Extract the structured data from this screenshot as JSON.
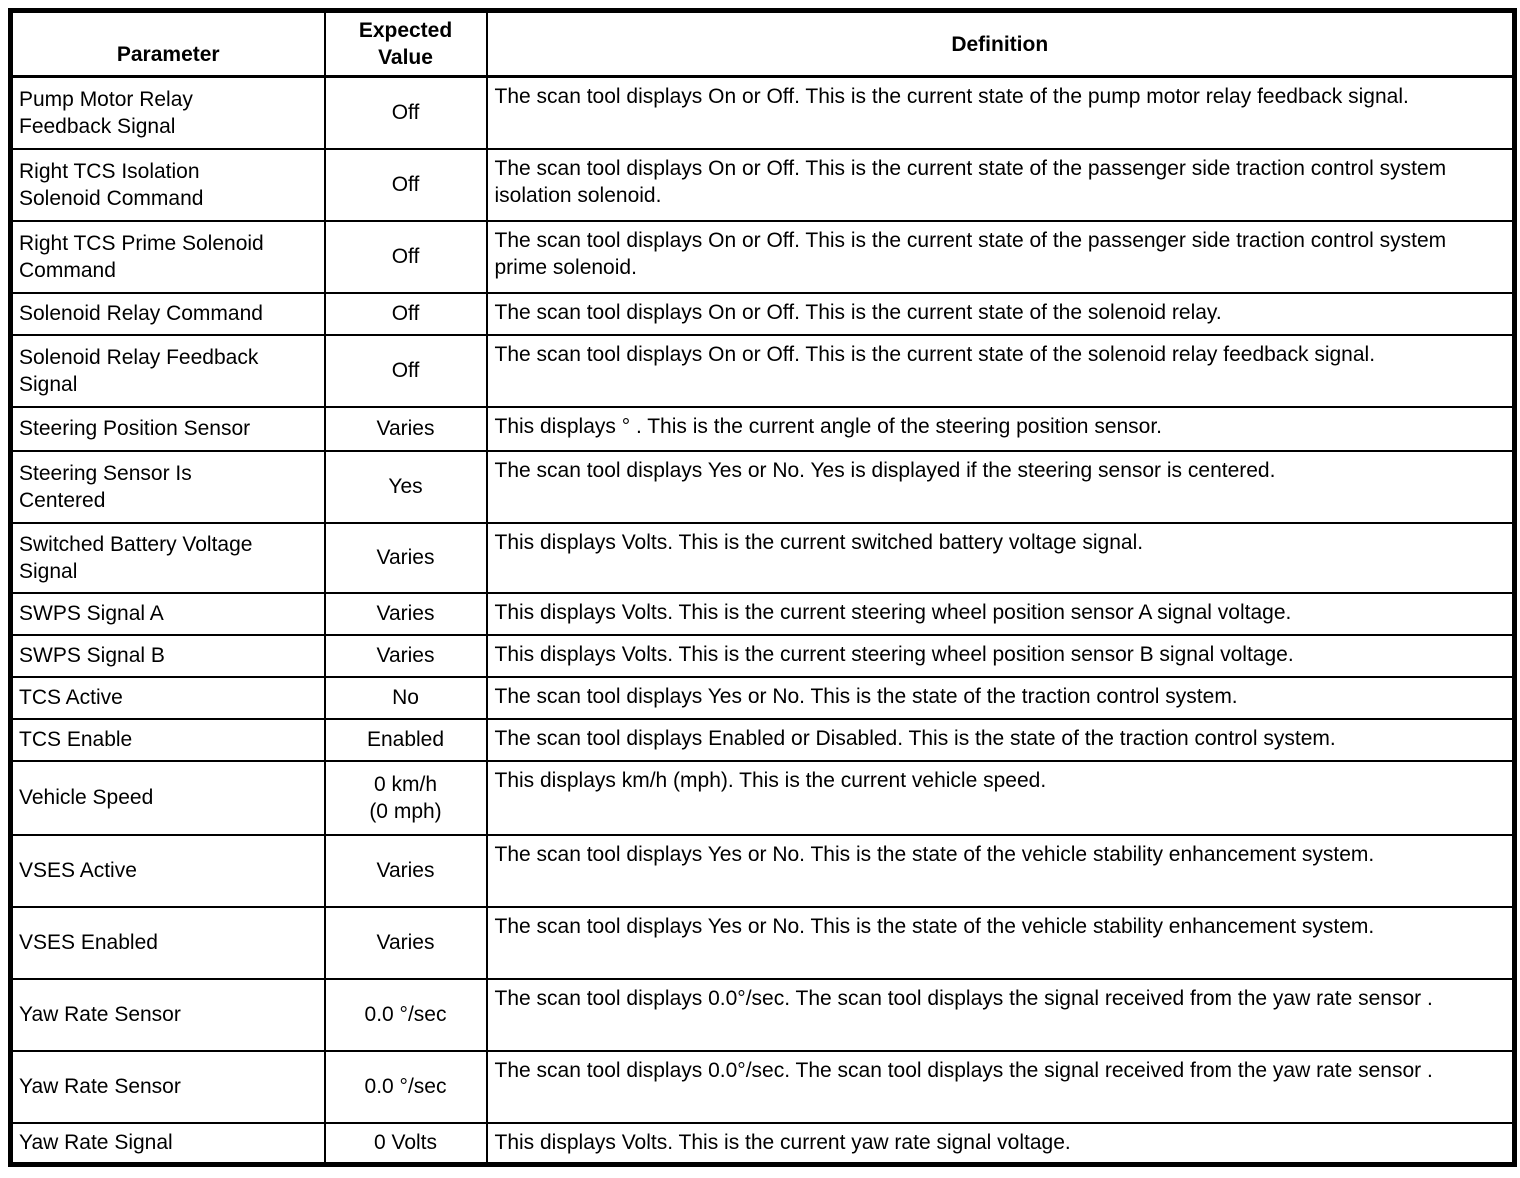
{
  "colors": {
    "background": "#ffffff",
    "border": "#000000",
    "text": "#000000"
  },
  "table": {
    "header": {
      "parameter": "Parameter",
      "expected": "Expected\nValue",
      "definition": "Definition"
    },
    "rows": [
      {
        "parameter": "Pump Motor Relay\nFeedback Signal",
        "expected": "Off",
        "definition": "The scan tool displays On or Off. This is the current state of the pump motor relay feedback signal."
      },
      {
        "parameter": "Right TCS Isolation\nSolenoid Command",
        "expected": "Off",
        "definition": "The scan tool displays On or Off. This is the current state of the passenger side traction control system isolation solenoid."
      },
      {
        "parameter": "Right TCS Prime Solenoid\nCommand",
        "expected": "Off",
        "definition": "The scan tool displays On or Off. This is the current state of the passenger side traction control system prime solenoid."
      },
      {
        "parameter": "Solenoid Relay Command",
        "expected": "Off",
        "definition": "The scan tool displays On or Off. This is the current state of the solenoid relay."
      },
      {
        "parameter": "Solenoid Relay Feedback\nSignal",
        "expected": "Off",
        "definition": "The scan tool displays On or Off. This is the current state of the solenoid relay feedback signal."
      },
      {
        "parameter": "Steering Position Sensor",
        "expected": "Varies",
        "definition": "This displays ° . This is the current angle of the steering position sensor."
      },
      {
        "parameter": "Steering Sensor Is\nCentered",
        "expected": "Yes",
        "definition": "The scan tool displays Yes or No. Yes is displayed if the steering sensor is centered."
      },
      {
        "parameter": "Switched Battery Voltage\nSignal",
        "expected": "Varies",
        "definition": "This displays Volts. This is the current switched battery voltage signal."
      },
      {
        "parameter": "SWPS Signal A",
        "expected": "Varies",
        "definition": "This displays Volts. This is the current steering wheel position sensor A signal voltage."
      },
      {
        "parameter": "SWPS Signal B",
        "expected": "Varies",
        "definition": "This displays Volts. This is the current steering wheel position sensor B signal voltage."
      },
      {
        "parameter": "TCS Active",
        "expected": "No",
        "definition": "The scan tool displays Yes or No. This is the state of the traction control system."
      },
      {
        "parameter": "TCS Enable",
        "expected": "Enabled",
        "definition": "The scan tool displays Enabled or Disabled. This is the state of the traction control system."
      },
      {
        "parameter": "Vehicle Speed",
        "expected": "0 km/h\n(0 mph)",
        "definition": "This displays km/h (mph). This is the current vehicle speed."
      },
      {
        "parameter": "VSES Active",
        "expected": "Varies",
        "definition": "The scan tool displays Yes or No. This is the state of the vehicle stability enhancement system."
      },
      {
        "parameter": "VSES Enabled",
        "expected": "Varies",
        "definition": "The scan tool displays Yes or No. This is the state of the vehicle stability enhancement system."
      },
      {
        "parameter": "Yaw Rate Sensor",
        "expected": "0.0 °/sec",
        "definition": "The scan tool displays 0.0°/sec. The scan tool displays the signal received from the yaw rate sensor ."
      },
      {
        "parameter": "Yaw Rate Sensor",
        "expected": "0.0 °/sec",
        "definition": "The scan tool displays 0.0°/sec. The scan tool displays the signal received from the yaw rate sensor ."
      },
      {
        "parameter": "Yaw Rate Signal",
        "expected": "0 Volts",
        "definition": "This displays Volts. This is the current yaw rate signal voltage."
      }
    ]
  }
}
